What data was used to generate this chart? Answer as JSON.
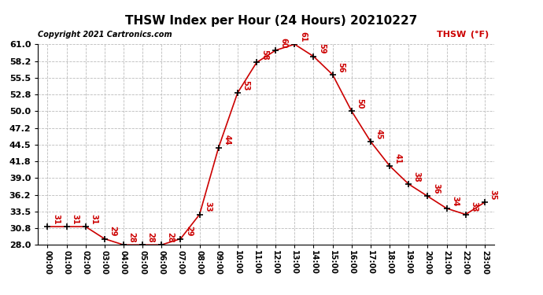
{
  "title": "THSW Index per Hour (24 Hours) 20210227",
  "copyright": "Copyright 2021 Cartronics.com",
  "legend_label": "THSW (°F)",
  "hours": [
    "00:00",
    "01:00",
    "02:00",
    "03:00",
    "04:00",
    "05:00",
    "06:00",
    "07:00",
    "08:00",
    "09:00",
    "10:00",
    "11:00",
    "12:00",
    "13:00",
    "14:00",
    "15:00",
    "16:00",
    "17:00",
    "18:00",
    "19:00",
    "20:00",
    "21:00",
    "22:00",
    "23:00"
  ],
  "values": [
    31,
    31,
    31,
    29,
    28,
    28,
    28,
    29,
    33,
    44,
    53,
    58,
    60,
    61,
    59,
    56,
    50,
    45,
    41,
    38,
    36,
    34,
    33,
    35
  ],
  "x_indices": [
    0,
    1,
    2,
    3,
    4,
    5,
    6,
    7,
    8,
    9,
    10,
    11,
    12,
    13,
    14,
    15,
    16,
    17,
    18,
    19,
    20,
    21,
    22,
    23
  ],
  "line_color": "#cc0000",
  "marker_color": "#000000",
  "label_color": "#cc0000",
  "title_color": "#000000",
  "background_color": "#ffffff",
  "grid_color": "#bbbbbb",
  "ylim": [
    28.0,
    61.0
  ],
  "yticks": [
    28.0,
    30.8,
    33.5,
    36.2,
    39.0,
    41.8,
    44.5,
    47.2,
    50.0,
    52.8,
    55.5,
    58.2,
    61.0
  ]
}
